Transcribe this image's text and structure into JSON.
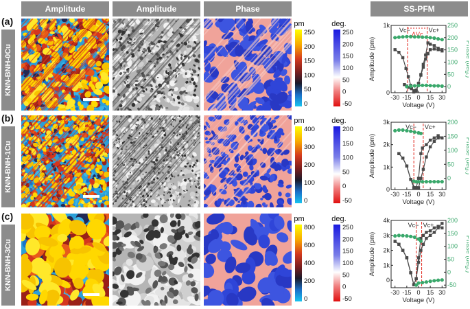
{
  "headers": {
    "amp1": "Amplitude",
    "amp2": "Amplitude",
    "phase": "Phase",
    "sspfm": "SS-PFM"
  },
  "rows": [
    {
      "letter": "(a)",
      "label": "KNN-BNH-0Cu",
      "pm_ticks": [
        "250",
        "200",
        "150",
        "100",
        "50",
        "0"
      ],
      "deg_ticks": [
        "250",
        "200",
        "150",
        "100",
        "50",
        "0",
        "-50"
      ],
      "chart_data": {
        "type": "line",
        "title": "",
        "xlabel": "Voltage (V)",
        "ylabel": "Amplitude (pm)",
        "y2label": "Phase (deg.)",
        "xticks": [
          "-30",
          "-15",
          "0",
          "15",
          "30"
        ],
        "yticks": [
          "0",
          "1k"
        ],
        "y2ticks": [
          "0",
          "50",
          "100",
          "150",
          "200",
          "250"
        ],
        "xlim": [
          -35,
          35
        ],
        "ylim": [
          0,
          1000
        ],
        "y2lim": [
          -25,
          250
        ],
        "annotations": [
          "Vc−",
          "ΔVc",
          "Vc+"
        ],
        "vc_minus": -14,
        "vc_plus": 11,
        "amp_down": {
          "x": [
            30,
            25,
            20,
            15,
            12,
            9,
            6,
            3,
            0,
            -3,
            -6,
            -9,
            -12,
            -15,
            -18
          ],
          "y": [
            640,
            660,
            700,
            720,
            740,
            560,
            420,
            270,
            130,
            20,
            30,
            60,
            80,
            100,
            120
          ]
        },
        "amp_up": {
          "x": [
            -30,
            -25,
            -20,
            -16,
            -13,
            -10,
            -6,
            -3,
            0,
            3,
            6,
            9,
            12,
            15,
            20,
            25,
            30
          ],
          "y": [
            640,
            600,
            520,
            360,
            240,
            110,
            10,
            40,
            140,
            260,
            380,
            500,
            580,
            640,
            650,
            640,
            620
          ]
        },
        "phase_top": {
          "x": [
            -30,
            -25,
            -20,
            -15,
            -10,
            -5,
            0,
            5,
            10,
            15,
            20,
            25,
            30
          ],
          "y": [
            200,
            202,
            203,
            204,
            204,
            203,
            203,
            202,
            202,
            200,
            198,
            195,
            192
          ]
        },
        "phase_bot": {
          "x": [
            -15,
            -10,
            -5,
            0,
            5,
            10,
            15,
            20,
            25,
            30
          ],
          "y": [
            0,
            2,
            3,
            4,
            5,
            5,
            4,
            3,
            3,
            2
          ]
        }
      }
    },
    {
      "letter": "(b)",
      "label": "KNN-BNH-1Cu",
      "pm_ticks": [
        "400",
        "300",
        "200",
        "100",
        "0"
      ],
      "deg_ticks": [
        "200",
        "150",
        "100",
        "50",
        "0",
        "-50"
      ],
      "chart_data": {
        "type": "line",
        "title": "",
        "xlabel": "Voltage (V)",
        "ylabel": "Amplitude (pm)",
        "y2label": "Phase (deg.)",
        "xticks": [
          "-30",
          "-15",
          "0",
          "15",
          "30"
        ],
        "yticks": [
          "0",
          "1k",
          "2k",
          "3k"
        ],
        "y2ticks": [
          "0",
          "50",
          "100",
          "150",
          "200"
        ],
        "xlim": [
          -35,
          35
        ],
        "ylim": [
          0,
          3000
        ],
        "y2lim": [
          -40,
          200
        ],
        "annotations": [
          "Vc−",
          "Vc+"
        ],
        "vc_minus": -6,
        "vc_plus": 6,
        "amp_down": {
          "x": [
            30,
            25,
            20,
            15,
            10,
            5,
            3,
            0,
            -3,
            -6,
            -10,
            -15,
            -20,
            -25
          ],
          "y": [
            2300,
            2400,
            2300,
            2200,
            2000,
            1850,
            1600,
            500,
            80,
            80,
            450,
            1050,
            1400,
            1600
          ]
        },
        "amp_up": {
          "x": [
            -25,
            -20,
            -15,
            -10,
            -5,
            0,
            3,
            6,
            10,
            15,
            20,
            25,
            30
          ],
          "y": [
            1600,
            1400,
            1050,
            450,
            80,
            80,
            500,
            900,
            1450,
            1900,
            2150,
            2300,
            2300
          ]
        },
        "phase_top": {
          "x": [
            -30,
            -25,
            -20,
            -15,
            -10,
            -5,
            0,
            3
          ],
          "y": [
            170,
            172,
            172,
            170,
            168,
            165,
            162,
            160
          ]
        },
        "phase_bot": {
          "x": [
            -6,
            -3,
            0,
            5,
            10,
            15,
            20,
            25,
            30
          ],
          "y": [
            -10,
            -12,
            -12,
            -12,
            -12,
            -12,
            -12,
            -12,
            -12
          ]
        }
      }
    },
    {
      "letter": "(c)",
      "label": "KNN-BNH-3Cu",
      "pm_ticks": [
        "800",
        "600",
        "400",
        "200",
        "0"
      ],
      "deg_ticks": [
        "250",
        "200",
        "150",
        "100",
        "50",
        "0",
        "-50"
      ],
      "chart_data": {
        "type": "line",
        "title": "",
        "xlabel": "Voltage (V)",
        "ylabel": "Amplitude (pm)",
        "y2label": "Phase (deg.)",
        "xticks": [
          "-30",
          "-15",
          "0",
          "15",
          "30"
        ],
        "yticks": [
          "0",
          "1k",
          "2k",
          "3k",
          "4k"
        ],
        "y2ticks": [
          "-50",
          "0",
          "50",
          "100",
          "150",
          "200"
        ],
        "xlim": [
          -35,
          35
        ],
        "ylim": [
          -500,
          4000
        ],
        "y2lim": [
          -60,
          200
        ],
        "annotations": [
          "Vc−",
          "Vc+"
        ],
        "vc_minus": -3,
        "vc_plus": 4,
        "amp_down": {
          "x": [
            30,
            25,
            20,
            15,
            10,
            6,
            3,
            0,
            -3,
            -6,
            -10,
            -15,
            -20,
            -25,
            -30
          ],
          "y": [
            3500,
            3600,
            3500,
            3300,
            3200,
            3000,
            2800,
            1500,
            100,
            -300,
            500,
            1500,
            2000,
            2400,
            2600
          ]
        },
        "amp_up": {
          "x": [
            -30,
            -25,
            -20,
            -15,
            -10,
            -6,
            -3,
            0,
            3,
            6,
            10,
            15,
            20,
            25,
            30
          ],
          "y": [
            2600,
            2400,
            2000,
            1500,
            500,
            -300,
            100,
            1200,
            2000,
            2400,
            2800,
            3000,
            3200,
            3500,
            3800
          ]
        },
        "phase_top": {
          "x": [
            -30,
            -25,
            -20,
            -15,
            -10,
            -5,
            0,
            3
          ],
          "y": [
            140,
            142,
            141,
            140,
            138,
            135,
            128,
            120
          ]
        },
        "phase_bot": {
          "x": [
            -3,
            0,
            5,
            10,
            15,
            20,
            25,
            30
          ],
          "y": [
            -50,
            -42,
            -40,
            -38,
            -35,
            -33,
            -31,
            -30
          ]
        }
      }
    }
  ],
  "colorbar_units": {
    "pm": "pm",
    "deg": "deg."
  },
  "scale_bar": "",
  "colors": {
    "header_bg": "#8c8c8c",
    "amp_series": "#4a4a4a",
    "phase_series": "#3aa86b",
    "vc_line": "#e0261c"
  }
}
